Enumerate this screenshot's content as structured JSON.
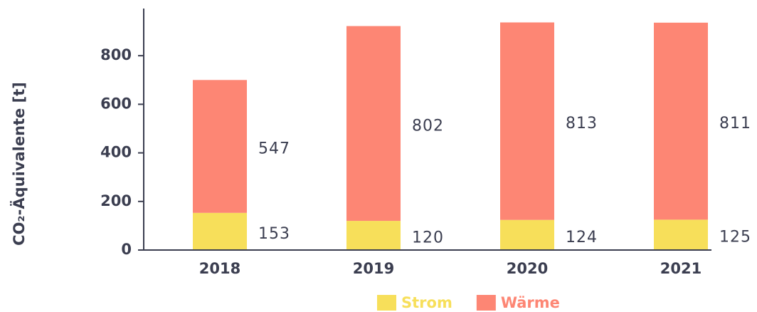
{
  "chart_data": {
    "type": "stacked_bar",
    "y_label": "CO₂-Äquivalente [t]",
    "categories": [
      "2018",
      "2019",
      "2020",
      "2021"
    ],
    "series": [
      {
        "name": "Strom",
        "color": "#f7df5a",
        "values": [
          153,
          120,
          124,
          125
        ]
      },
      {
        "name": "Wärme",
        "color": "#fd8674",
        "values": [
          547,
          802,
          813,
          811
        ]
      }
    ],
    "ylim": [
      0,
      1000
    ],
    "yticks": [
      0,
      200,
      400,
      600,
      800
    ],
    "legend": "bottom"
  }
}
